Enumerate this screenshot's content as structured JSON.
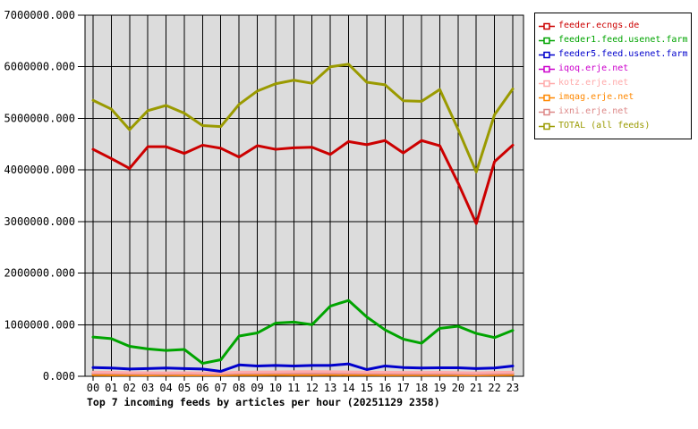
{
  "chart_data": {
    "type": "line",
    "title": "Top 7 incoming feeds by articles per hour (20251129 2358)",
    "xlabel": "",
    "ylabel": "",
    "ylim": [
      0,
      7000000
    ],
    "ytick_step": 1000000,
    "ytick_decimals": 3,
    "grid": true,
    "legend_position": "top-right",
    "plot_bg": "#dcdcdc",
    "grid_color": "#000000",
    "categories": [
      "00",
      "01",
      "02",
      "03",
      "04",
      "05",
      "06",
      "07",
      "08",
      "09",
      "10",
      "11",
      "12",
      "13",
      "14",
      "15",
      "16",
      "17",
      "18",
      "19",
      "20",
      "21",
      "22",
      "23"
    ],
    "series": [
      {
        "name": "feeder.ecngs.de",
        "color": "#cc0000",
        "values": [
          4400000,
          4220000,
          4030000,
          4450000,
          4450000,
          4320000,
          4480000,
          4420000,
          4250000,
          4470000,
          4400000,
          4430000,
          4440000,
          4300000,
          4550000,
          4490000,
          4570000,
          4330000,
          4570000,
          4470000,
          3750000,
          2960000,
          4160000,
          4480000
        ]
      },
      {
        "name": "feeder1.feed.usenet.farm",
        "color": "#00a400",
        "values": [
          760000,
          730000,
          580000,
          530000,
          500000,
          520000,
          250000,
          320000,
          780000,
          840000,
          1030000,
          1050000,
          1000000,
          1360000,
          1470000,
          1150000,
          900000,
          720000,
          640000,
          930000,
          970000,
          830000,
          750000,
          890000
        ]
      },
      {
        "name": "feeder5.feed.usenet.farm",
        "color": "#0000cc",
        "values": [
          170000,
          160000,
          140000,
          150000,
          160000,
          150000,
          140000,
          95000,
          220000,
          200000,
          210000,
          200000,
          210000,
          210000,
          240000,
          130000,
          200000,
          170000,
          160000,
          165000,
          165000,
          150000,
          160000,
          200000
        ]
      },
      {
        "name": "iqoq.erje.net",
        "color": "#cc00cc",
        "values": [
          50000,
          48000,
          45000,
          46000,
          47000,
          45000,
          52000,
          50000,
          48000,
          46000,
          45000,
          47000,
          50000,
          52000,
          48000,
          45000,
          46000,
          47000,
          45000,
          44000,
          42000,
          40000,
          45000,
          48000
        ]
      },
      {
        "name": "kotz.erje.net",
        "color": "#ffaaaa",
        "values": [
          80000,
          78000,
          72000,
          70000,
          68000,
          70000,
          65000,
          68000,
          80000,
          82000,
          85000,
          88000,
          90000,
          88000,
          85000,
          80000,
          78000,
          76000,
          75000,
          78000,
          72000,
          68000,
          75000,
          80000
        ]
      },
      {
        "name": "imqag.erje.net",
        "color": "#ff8800",
        "values": [
          30000,
          29000,
          28000,
          27000,
          28000,
          27000,
          26000,
          27000,
          30000,
          31000,
          32000,
          31000,
          30000,
          32000,
          31000,
          30000,
          29000,
          28000,
          28000,
          29000,
          27000,
          25000,
          28000,
          30000
        ]
      },
      {
        "name": "ixni.erje.net",
        "color": "#dd8888",
        "values": [
          60000,
          58000,
          55000,
          52000,
          50000,
          52000,
          48000,
          50000,
          58000,
          60000,
          62000,
          60000,
          58000,
          62000,
          60000,
          58000,
          55000,
          52000,
          52000,
          55000,
          50000,
          45000,
          52000,
          58000
        ]
      },
      {
        "name": "TOTAL (all feeds)",
        "color": "#9a9a00",
        "values": [
          5350000,
          5180000,
          4780000,
          5150000,
          5250000,
          5100000,
          4860000,
          4840000,
          5270000,
          5530000,
          5670000,
          5740000,
          5680000,
          6000000,
          6050000,
          5700000,
          5650000,
          5340000,
          5330000,
          5560000,
          4790000,
          3960000,
          5070000,
          5570000
        ]
      }
    ]
  }
}
